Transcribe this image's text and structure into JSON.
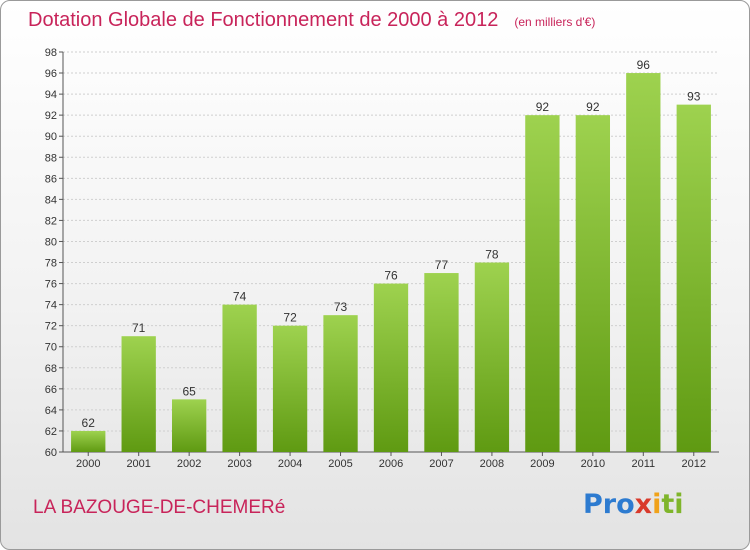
{
  "title": "Dotation Globale de Fonctionnement de 2000 à 2012",
  "subtitle": "(en milliers d'€)",
  "commune": "LA BAZOUGE-DE-CHEMERé",
  "logo": {
    "p1": "Pro",
    "p2": "x",
    "p3": "i",
    "p4": "ti"
  },
  "colors": {
    "title": "#c8245a",
    "bar_top": "#9ed24f",
    "bar_bottom": "#5f9a12",
    "grid": "#cfcfcf"
  },
  "chart_data": {
    "type": "bar",
    "categories": [
      "2000",
      "2001",
      "2002",
      "2003",
      "2004",
      "2005",
      "2006",
      "2007",
      "2008",
      "2009",
      "2010",
      "2011",
      "2012"
    ],
    "values": [
      62,
      71,
      65,
      74,
      72,
      73,
      76,
      77,
      78,
      92,
      92,
      96,
      93
    ],
    "ylim": [
      60,
      98
    ],
    "yticks": [
      60,
      62,
      64,
      66,
      68,
      70,
      72,
      74,
      76,
      78,
      80,
      82,
      84,
      86,
      88,
      90,
      92,
      94,
      96,
      98
    ],
    "grid": true,
    "xlabel": "",
    "ylabel": ""
  }
}
